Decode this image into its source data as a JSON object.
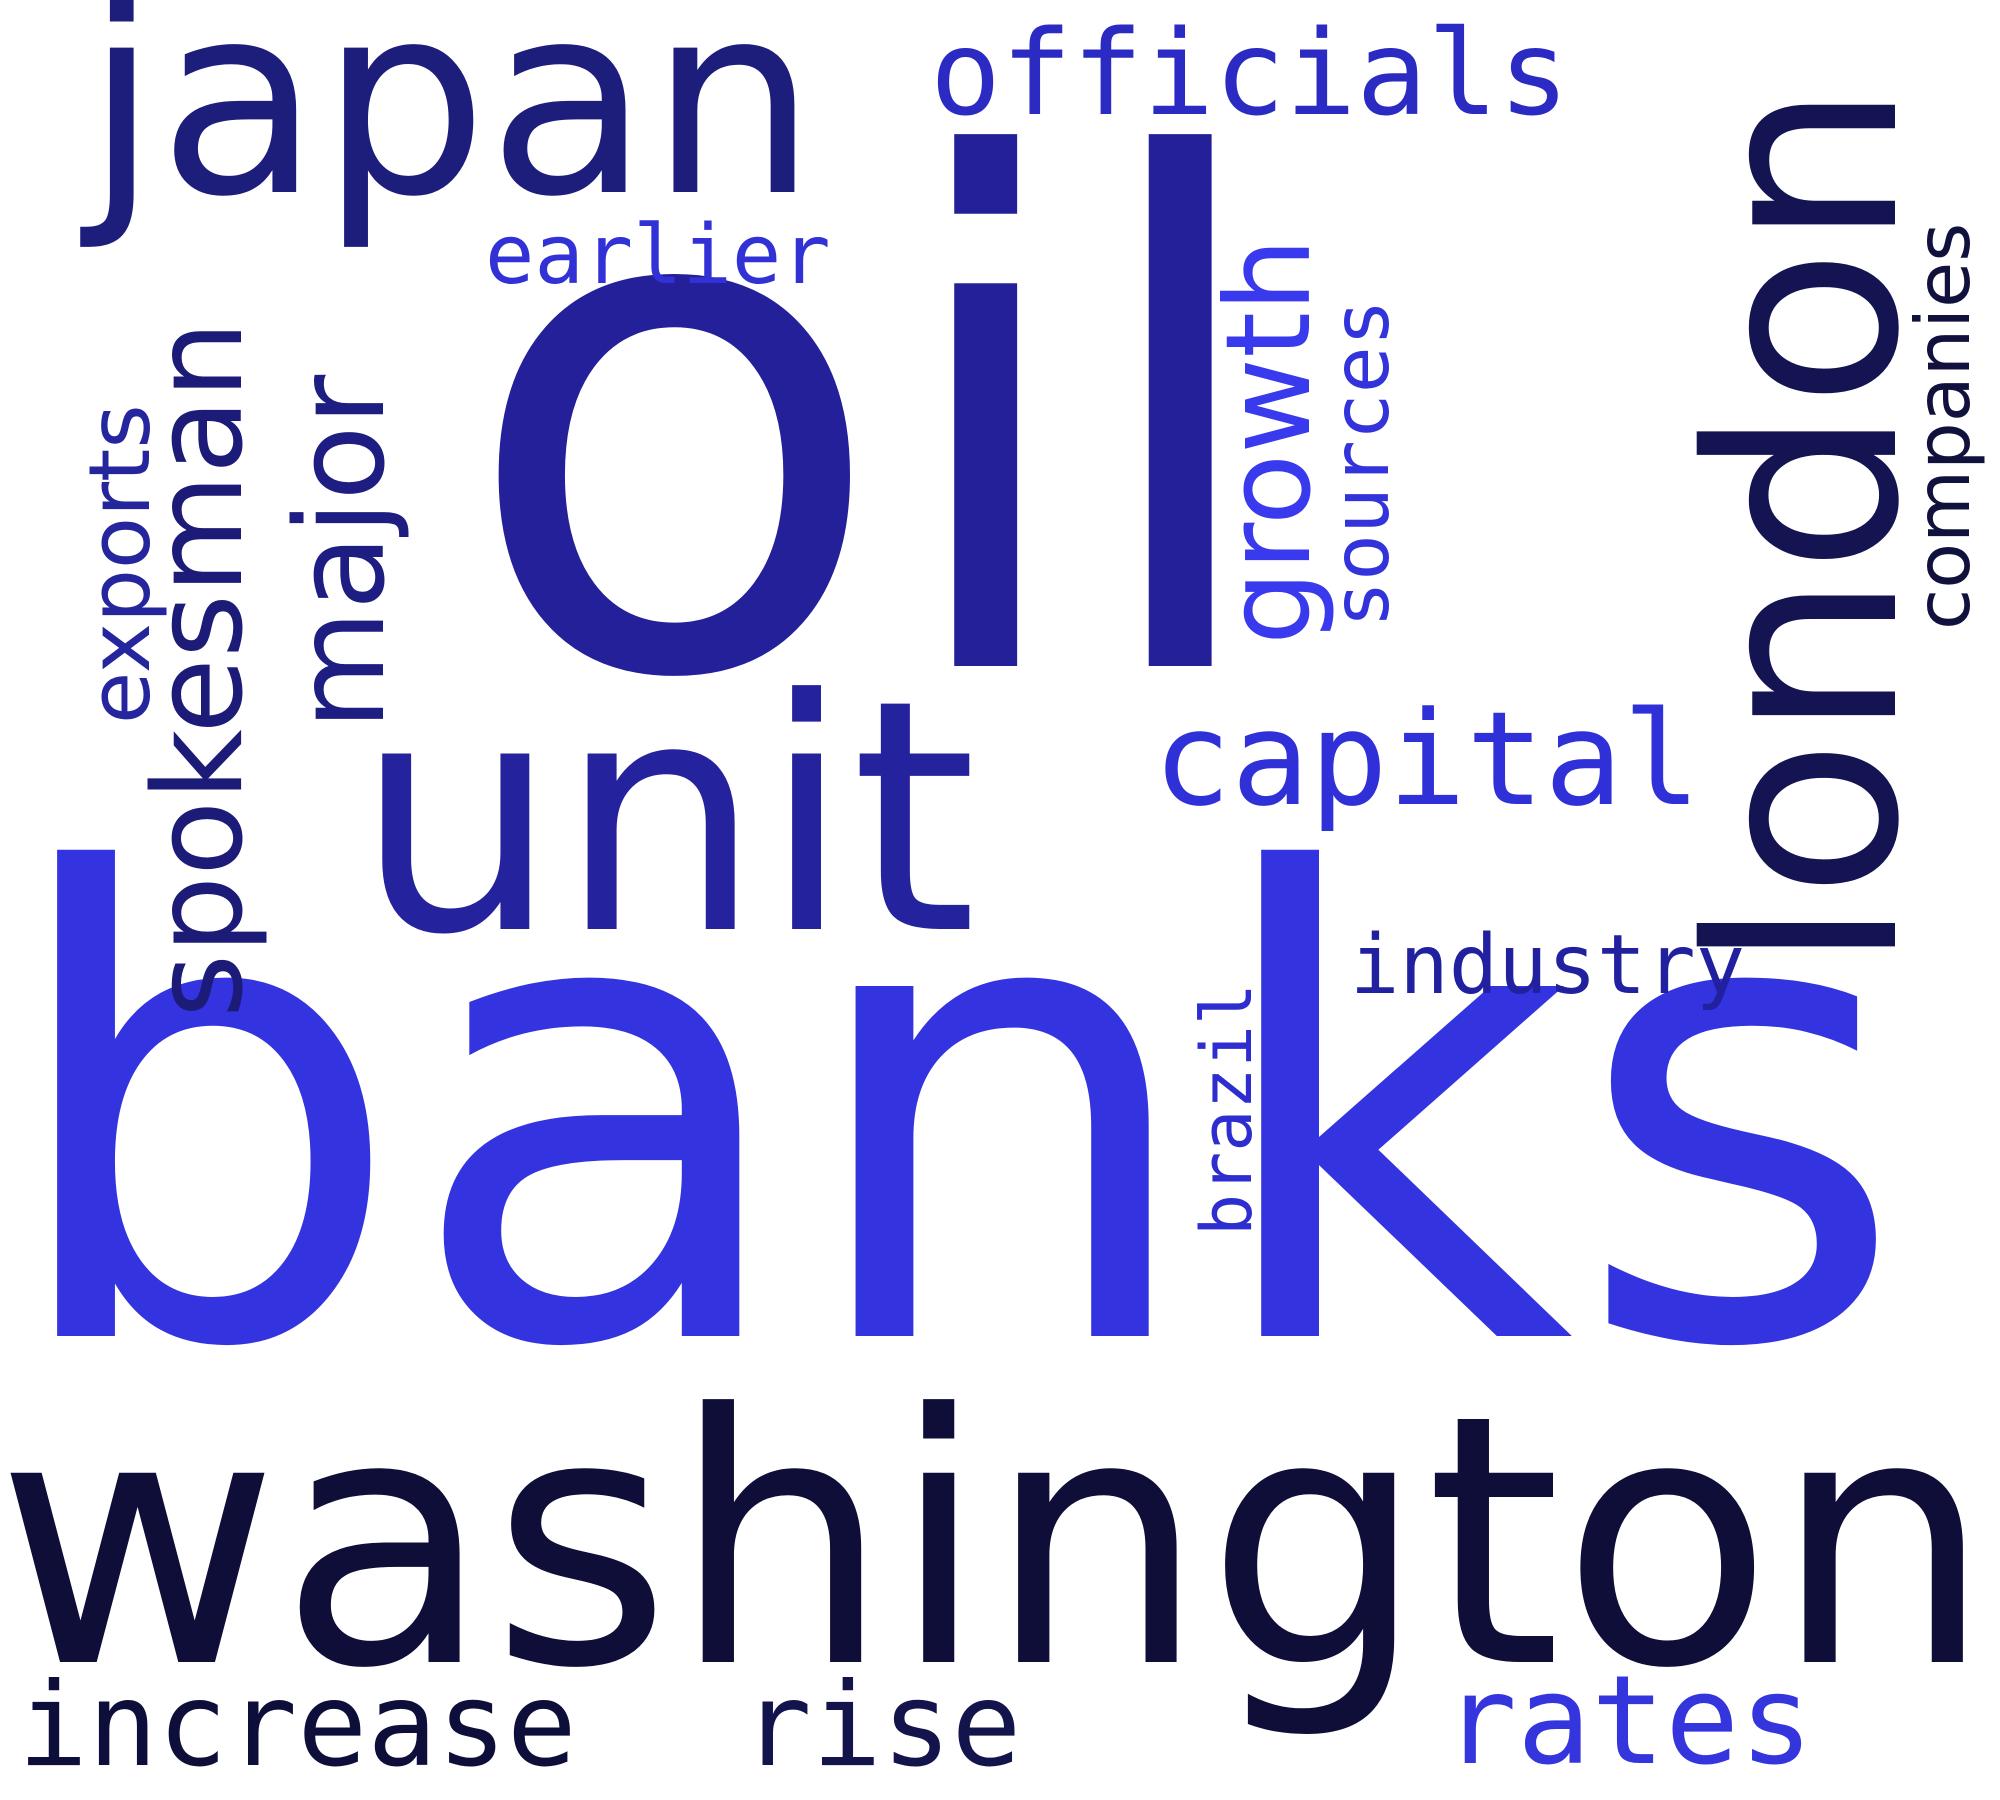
{
  "cloud": {
    "background": "#ffffff",
    "words": {
      "oil": {
        "text": "oil",
        "color": "#23209a"
      },
      "banks": {
        "text": "banks",
        "color": "#3333e0"
      },
      "washington": {
        "text": "washington",
        "color": "#0e0e38"
      },
      "london": {
        "text": "london",
        "color": "#141452"
      },
      "unit": {
        "text": "unit",
        "color": "#24229c"
      },
      "japan": {
        "text": "japan",
        "color": "#1d1d7c"
      },
      "officials": {
        "text": "officials",
        "color": "#2b2bc4"
      },
      "spokesman": {
        "text": "spokesman",
        "color": "#1c1c78"
      },
      "major": {
        "text": "major",
        "color": "#1d1d82"
      },
      "exports": {
        "text": "exports",
        "color": "#25259e"
      },
      "earlier": {
        "text": "earlier",
        "color": "#3131d6"
      },
      "growth": {
        "text": "growth",
        "color": "#3939ee"
      },
      "sources": {
        "text": "sources",
        "color": "#3333dc"
      },
      "companies": {
        "text": "companies",
        "color": "#11113e"
      },
      "capital": {
        "text": "capital",
        "color": "#3030d8"
      },
      "brazil": {
        "text": "brazil",
        "color": "#2e2ed0"
      },
      "industry": {
        "text": "industry",
        "color": "#2121a0"
      },
      "increase": {
        "text": "increase",
        "color": "#0e0e3a"
      },
      "rise": {
        "text": "rise",
        "color": "#14144c"
      },
      "rates": {
        "text": "rates",
        "color": "#3535dd"
      }
    }
  }
}
